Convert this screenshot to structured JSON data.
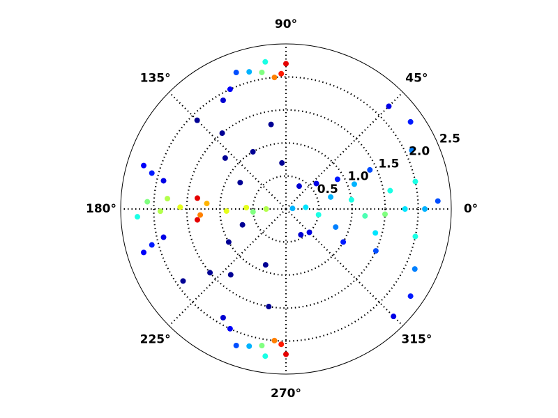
{
  "chart_data": {
    "type": "polar-scatter",
    "rlim": [
      0,
      2.5
    ],
    "rticks": [
      0.5,
      {
        "value": 1,
        "label": "1.0"
      },
      1.5,
      {
        "value": 2,
        "label": "2.0"
      },
      2.5
    ],
    "thetaticks": [
      {
        "value": 0,
        "label": "0°"
      },
      {
        "value": 45,
        "label": "45°"
      },
      {
        "value": 90,
        "label": "90°"
      },
      {
        "value": 135,
        "label": "135°"
      },
      {
        "value": 180,
        "label": "180°"
      },
      {
        "value": 225,
        "label": "225°"
      },
      {
        "value": 270,
        "label": "270°"
      },
      {
        "value": 315,
        "label": "315°"
      }
    ],
    "colormap": "jet",
    "grid": true,
    "series": [
      {
        "theta": [
          5,
          -10,
          15,
          -20,
          8,
          -5,
          20,
          -15,
          10,
          0,
          -25,
          25,
          30,
          -30,
          40,
          -45,
          60,
          -60,
          0,
          12,
          -12,
          25,
          -25,
          35,
          -35,
          45,
          -45,
          3,
          -3,
          5,
          180,
          178,
          182,
          176,
          184,
          173,
          187,
          179,
          181,
          177,
          183,
          175,
          185,
          165,
          163,
          167,
          195,
          197,
          193,
          90,
          92,
          95,
          100,
          105,
          110,
          98,
          115,
          120,
          270,
          268,
          265,
          260,
          255,
          250,
          262,
          245,
          240,
          130,
          140,
          120,
          150,
          100,
          95,
          135,
          210,
          220,
          230,
          250,
          260,
          215,
          200
        ],
        "r": [
          0.3,
          0.5,
          0.7,
          0.8,
          1.0,
          1.2,
          1.1,
          1.4,
          1.6,
          1.8,
          1.5,
          1.4,
          0.9,
          1.0,
          0.6,
          0.5,
          0.4,
          0.45,
          2.1,
          2.0,
          2.0,
          2.1,
          2.15,
          2.3,
          2.3,
          2.2,
          2.3,
          2.3,
          1.5,
          0.1,
          0.3,
          0.6,
          0.9,
          1.2,
          1.3,
          1.35,
          1.35,
          1.6,
          1.9,
          2.1,
          2.25,
          1.8,
          0.5,
          2.1,
          2.25,
          1.9,
          2.1,
          2.25,
          1.9,
          2.2,
          2.05,
          2.0,
          2.1,
          2.15,
          2.2,
          2.25,
          2.0,
          1.9,
          2.2,
          2.05,
          2.0,
          2.1,
          2.15,
          2.2,
          2.25,
          2.0,
          1.9,
          1.5,
          1.2,
          1.0,
          0.8,
          1.3,
          0.7,
          1.9,
          1.0,
          1.5,
          1.3,
          0.9,
          1.5,
          1.9,
          0.7
        ],
        "density": [
          0.35,
          0.4,
          0.3,
          0.25,
          0.4,
          0.45,
          0.3,
          0.35,
          0.4,
          0.35,
          0.2,
          0.2,
          0.15,
          0.15,
          0.1,
          0.1,
          0.08,
          0.08,
          0.3,
          0.4,
          0.4,
          0.25,
          0.25,
          0.15,
          0.15,
          0.1,
          0.1,
          0.2,
          0.5,
          0.3,
          0.55,
          0.6,
          0.6,
          0.7,
          0.75,
          0.9,
          0.9,
          0.6,
          0.55,
          0.5,
          0.4,
          0.55,
          0.5,
          0.15,
          0.12,
          0.1,
          0.15,
          0.12,
          0.1,
          0.9,
          0.85,
          0.75,
          0.5,
          0.3,
          0.2,
          0.4,
          0.12,
          0.08,
          0.9,
          0.85,
          0.75,
          0.5,
          0.3,
          0.2,
          0.4,
          0.12,
          0.08,
          0.02,
          0.02,
          0.02,
          0.02,
          0.02,
          0.02,
          0.02,
          0.02,
          0.02,
          0.02,
          0.02,
          0.02,
          0.02,
          0.02
        ]
      }
    ]
  }
}
